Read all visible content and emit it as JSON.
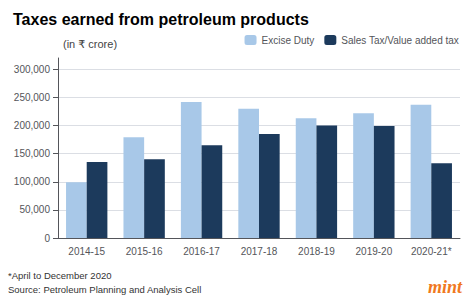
{
  "chart_data": {
    "type": "bar",
    "title": "Taxes earned from petroleum products",
    "subtitle": "(in ₹ crore)",
    "categories": [
      "2014-15",
      "2015-16",
      "2016-17",
      "2017-18",
      "2018-19",
      "2019-20",
      "2020-21*"
    ],
    "series": [
      {
        "name": "Excise Duty",
        "color": "#a8c8e8",
        "values": [
          99000,
          179000,
          242000,
          230000,
          213000,
          222000,
          237000
        ]
      },
      {
        "name": "Sales Tax/Value added tax",
        "color": "#1c3a5c",
        "values": [
          135000,
          140000,
          165000,
          185000,
          200000,
          199000,
          133000
        ]
      }
    ],
    "ylim": [
      0,
      320000
    ],
    "yticks": [
      0,
      {
        "value": 50000,
        "label": "50,000"
      },
      {
        "value": 100000,
        "label": "100,000"
      },
      {
        "value": 150000,
        "label": "150,000"
      },
      {
        "value": 200000,
        "label": "200,000"
      },
      {
        "value": 250000,
        "label": "250,000"
      },
      {
        "value": 300000,
        "label": "300,000"
      }
    ],
    "grid": true,
    "legend": "upper right",
    "annotations": [
      "*April to December 2020",
      "Source: Petroleum Planning and Analysis Cell",
      "mint"
    ]
  }
}
